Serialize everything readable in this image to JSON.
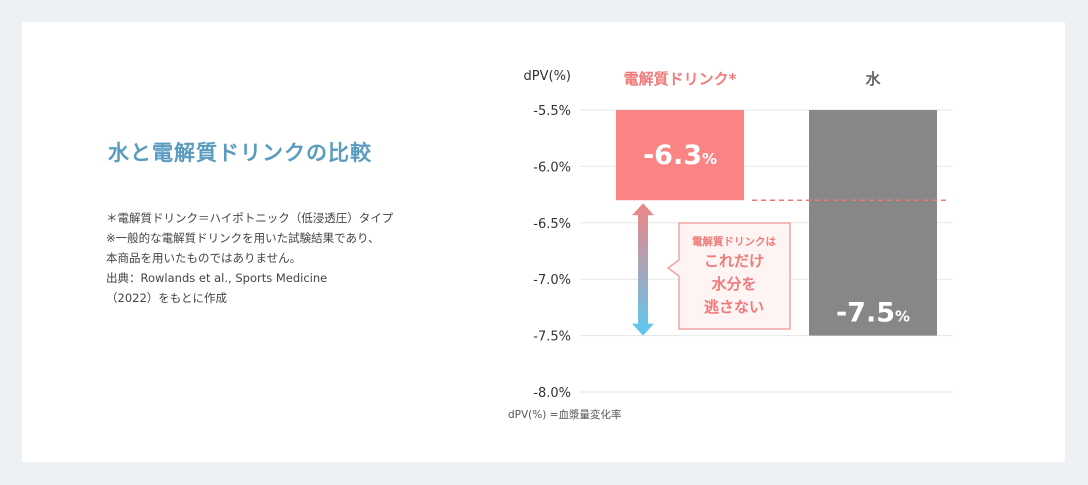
{
  "heading": "水と電解質ドリンクの比較",
  "notes": [
    "＊電解質ドリンク＝ハイポトニック（低浸透圧）タイプ",
    "※一般的な電解質ドリンクを用いた試験結果であり、",
    "本商品を用いたものではありません。",
    "出典：Rowlands et al., Sports Medicine",
    "（2022）をもとに作成"
  ],
  "callout": [
    "電解質ドリンクは",
    "これだけ",
    "水分を",
    "逃さない"
  ],
  "colors": {
    "drink_bar": "#fa8484",
    "water_bar": "#878787",
    "drink_label": "#f07a7a",
    "water_label": "#666666",
    "title": "#5a9cc0",
    "arrow_top": "#f08484",
    "arrow_bottom": "#5cc8f2",
    "callout_border": "#f2a3a3",
    "callout_bg": "#fff4f4"
  },
  "chart_data": {
    "type": "bar",
    "ylabel": "dPV(%)",
    "footnote": "dPV(%) =血漿量変化率",
    "ylim": [
      -8.0,
      -5.5
    ],
    "yticks": [
      -5.5,
      -6.0,
      -6.5,
      -7.0,
      -7.5,
      -8.0
    ],
    "ytick_labels": [
      "-5.5%",
      "-6.0%",
      "-6.5%",
      "-7.0%",
      "-7.5%",
      "-8.0%"
    ],
    "categories": [
      "電解質ドリンク*",
      "水"
    ],
    "values": [
      -6.3,
      -7.5
    ],
    "value_labels": [
      {
        "num": "-6.3",
        "unit": "%"
      },
      {
        "num": "-7.5",
        "unit": "%"
      }
    ],
    "reference_line": -6.3,
    "grid": true,
    "orientation": "bars hang from top (-5.5%)"
  }
}
